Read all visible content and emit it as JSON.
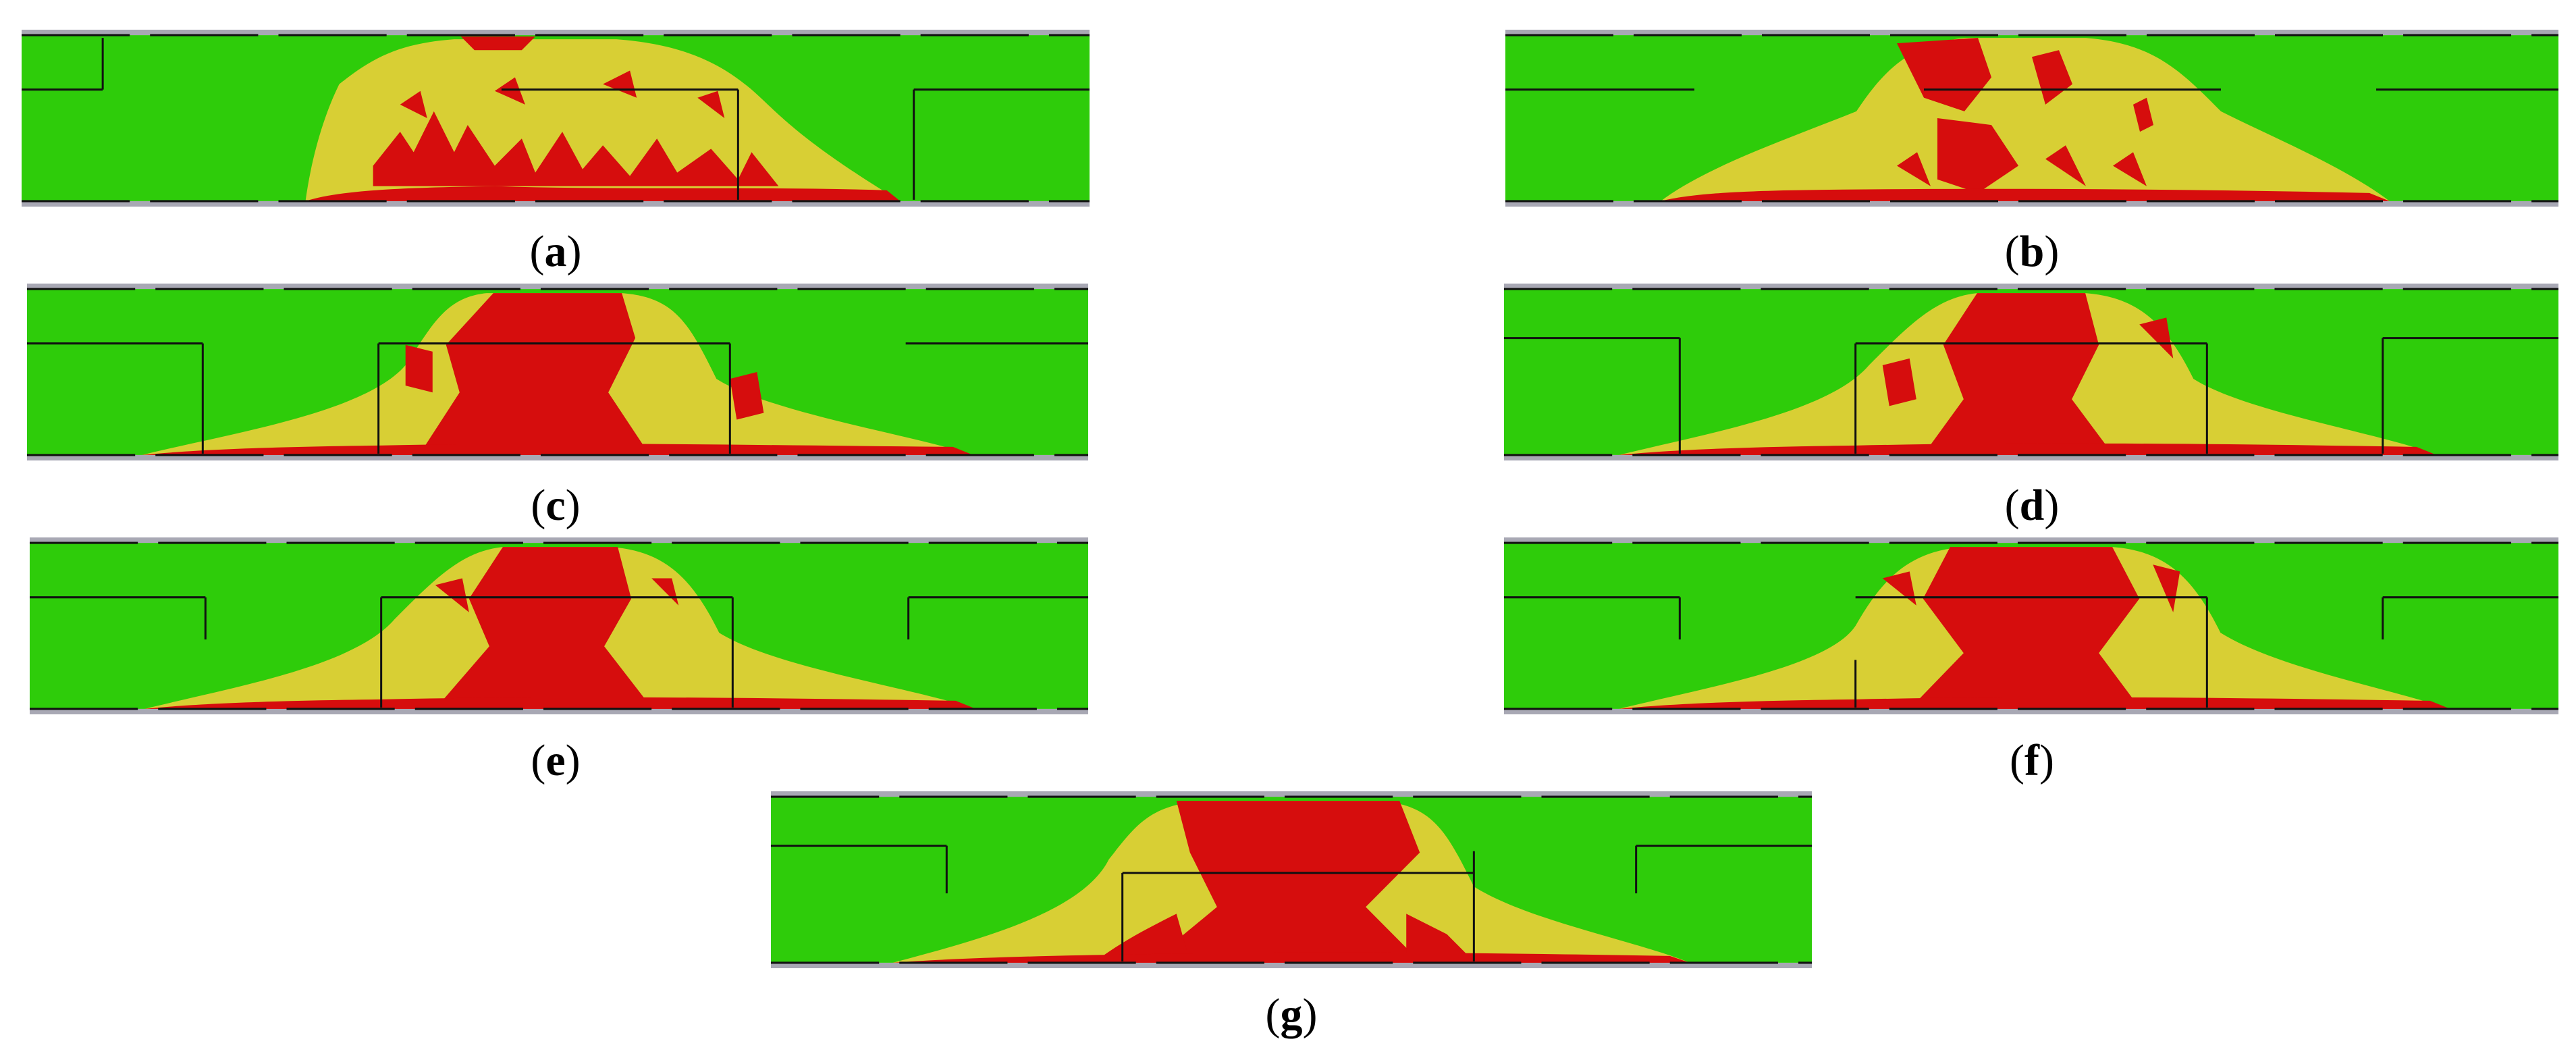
{
  "colors": {
    "green": "#2ecc0a",
    "yellow": "#d8cf34",
    "red": "#d60d0d",
    "frame": "#a8a8b4",
    "line": "#111111"
  },
  "panels": [
    {
      "id": "a",
      "caption": "a"
    },
    {
      "id": "b",
      "caption": "b"
    },
    {
      "id": "c",
      "caption": "c"
    },
    {
      "id": "d",
      "caption": "d"
    },
    {
      "id": "e",
      "caption": "e"
    },
    {
      "id": "f",
      "caption": "f"
    },
    {
      "id": "g",
      "caption": "g"
    }
  ]
}
